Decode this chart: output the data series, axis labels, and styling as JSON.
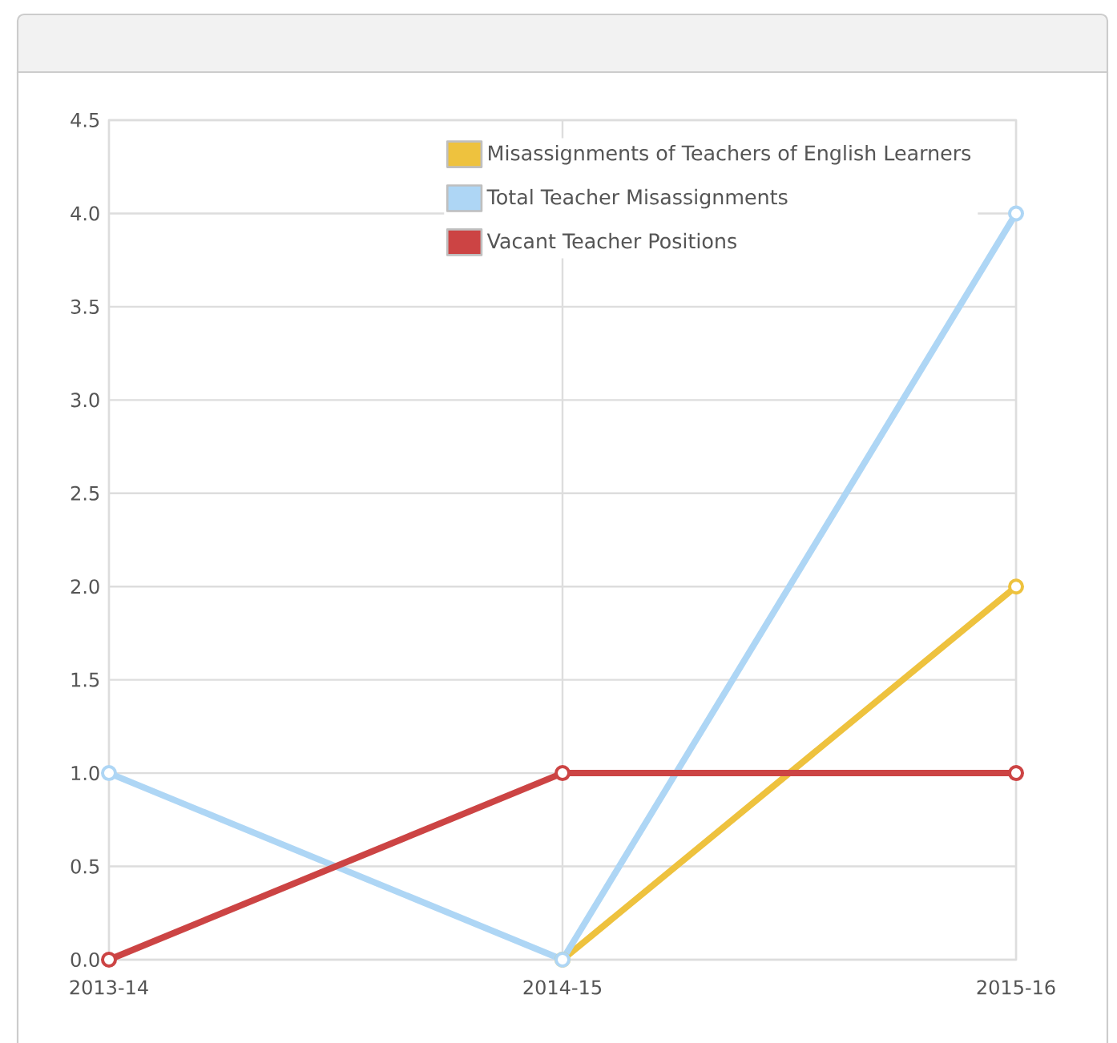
{
  "chart_data": {
    "type": "line",
    "categories": [
      "2013-14",
      "2014-15",
      "2015-16"
    ],
    "series": [
      {
        "name": "Misassignments of Teachers of English Learners",
        "color": "#eec23e",
        "values": [
          null,
          0,
          2
        ]
      },
      {
        "name": "Total Teacher Misassignments",
        "color": "#aed6f5",
        "values": [
          1,
          0,
          4
        ]
      },
      {
        "name": "Vacant Teacher Positions",
        "color": "#cc4444",
        "values": [
          0,
          1,
          1
        ]
      }
    ],
    "ylim": [
      0,
      4.5
    ],
    "yticks": [
      {
        "value": 0,
        "label": "0.0"
      },
      0.5,
      {
        "value": 1,
        "label": "1.0"
      },
      1.5,
      {
        "value": 2,
        "label": "2.0"
      },
      2.5,
      {
        "value": 3,
        "label": "3.0"
      },
      3.5,
      {
        "value": 4,
        "label": "4.0"
      },
      4.5
    ],
    "grid": true,
    "legend": "top right",
    "marker": "circle",
    "line_style": "solid"
  }
}
